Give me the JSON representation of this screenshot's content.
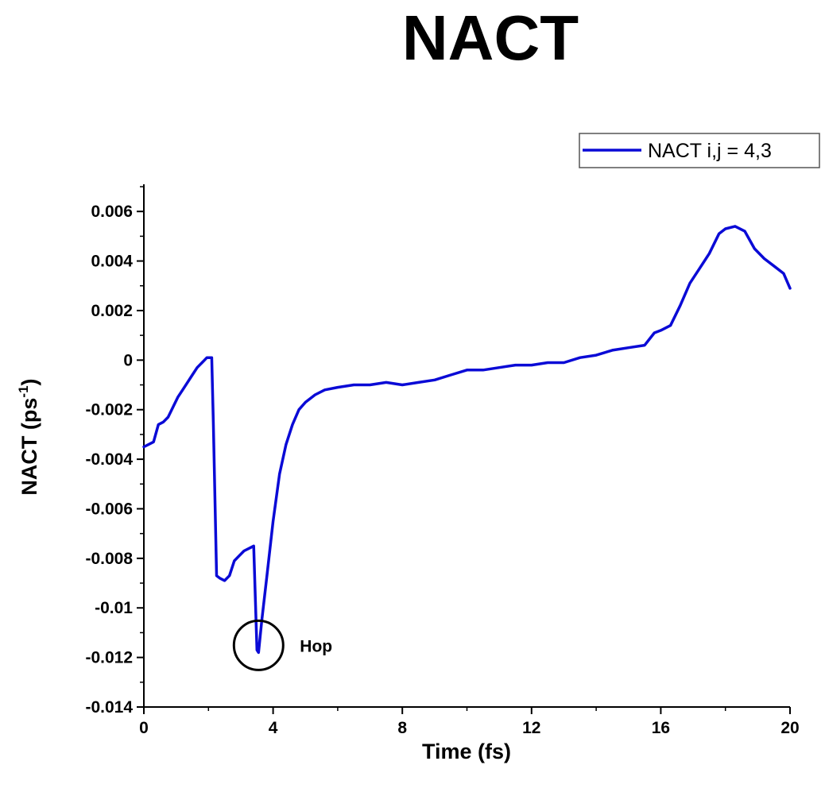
{
  "chart_data": {
    "type": "line",
    "title": "NACT",
    "xlabel": "Time (fs)",
    "ylabel_main": "NACT (ps",
    "ylabel_sup": "-1",
    "ylabel_end": ")",
    "xlim": [
      0,
      20
    ],
    "ylim": [
      -0.014,
      0.007
    ],
    "xticks": [
      0,
      4,
      8,
      12,
      16,
      20
    ],
    "xtick_labels": [
      "0",
      "4",
      "8",
      "12",
      "16",
      "20"
    ],
    "yticks": [
      0.006,
      0.004,
      0.002,
      0,
      -0.002,
      -0.004,
      -0.006,
      -0.008,
      -0.01,
      -0.012,
      -0.014
    ],
    "ytick_labels": [
      "0.006",
      "0.004",
      "0.002",
      "0",
      "-0.002",
      "-0.004",
      "-0.006",
      "-0.008",
      "-0.01",
      "-0.012",
      "-0.014"
    ],
    "grid": false,
    "legend_position": "top-right",
    "series": [
      {
        "name": "NACT i,j = 4,3",
        "color": "#0a0ad6",
        "x": [
          0,
          0.15,
          0.3,
          0.45,
          0.6,
          0.75,
          0.9,
          1.05,
          1.2,
          1.35,
          1.5,
          1.65,
          1.8,
          1.95,
          2.1,
          2.15,
          2.25,
          2.35,
          2.5,
          2.65,
          2.8,
          2.95,
          3.1,
          3.25,
          3.4,
          3.5,
          3.55,
          3.65,
          3.8,
          4.0,
          4.2,
          4.4,
          4.6,
          4.8,
          5.0,
          5.3,
          5.6,
          6.0,
          6.5,
          7.0,
          7.5,
          8.0,
          8.5,
          9.0,
          9.5,
          10.0,
          10.5,
          11.0,
          11.5,
          12.0,
          12.5,
          13.0,
          13.5,
          14.0,
          14.5,
          15.0,
          15.5,
          15.8,
          16.0,
          16.3,
          16.6,
          16.9,
          17.2,
          17.5,
          17.8,
          18.0,
          18.3,
          18.6,
          18.9,
          19.2,
          19.5,
          19.8,
          20.0
        ],
        "y": [
          -0.0035,
          -0.0034,
          -0.0033,
          -0.0026,
          -0.0025,
          -0.0023,
          -0.0019,
          -0.0015,
          -0.0012,
          -0.0009,
          -0.0006,
          -0.0003,
          -0.0001,
          0.0001,
          0.0001,
          -0.0025,
          -0.0087,
          -0.0088,
          -0.0089,
          -0.0087,
          -0.0081,
          -0.0079,
          -0.0077,
          -0.0076,
          -0.0075,
          -0.0117,
          -0.0118,
          -0.0105,
          -0.0088,
          -0.0065,
          -0.0046,
          -0.0034,
          -0.0026,
          -0.002,
          -0.0017,
          -0.0014,
          -0.0012,
          -0.0011,
          -0.001,
          -0.001,
          -0.0009,
          -0.001,
          -0.0009,
          -0.0008,
          -0.0006,
          -0.0004,
          -0.0004,
          -0.0003,
          -0.0002,
          -0.0002,
          -0.0001,
          -0.0001,
          0.0001,
          0.0002,
          0.0004,
          0.0005,
          0.0006,
          0.0011,
          0.0012,
          0.0014,
          0.0022,
          0.0031,
          0.0037,
          0.0043,
          0.0051,
          0.0053,
          0.0054,
          0.0052,
          0.0045,
          0.0041,
          0.0038,
          0.0035,
          0.0029
        ]
      }
    ],
    "annotation": {
      "text": "Hop",
      "x": 3.55,
      "y": -0.0118
    }
  }
}
